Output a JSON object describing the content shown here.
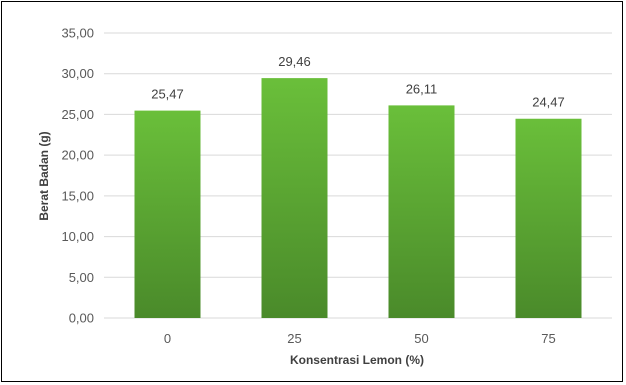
{
  "chart_data": {
    "type": "bar",
    "categories": [
      "0",
      "25",
      "50",
      "75"
    ],
    "values": [
      25.47,
      29.46,
      26.11,
      24.47
    ],
    "data_labels": [
      "25,47",
      "29,46",
      "26,11",
      "24,47"
    ],
    "title": "",
    "xlabel": "Konsentrasi Lemon  (%)",
    "ylabel": "Berat Badan  (g)",
    "ylim": [
      0,
      35
    ],
    "yticks": [
      {
        "value": 0,
        "label": "0,00"
      },
      {
        "value": 5,
        "label": "5,00"
      },
      {
        "value": 10,
        "label": "10,00"
      },
      {
        "value": 15,
        "label": "15,00"
      },
      {
        "value": 20,
        "label": "20,00"
      },
      {
        "value": 25,
        "label": "25,00"
      },
      {
        "value": 30,
        "label": "30,00"
      },
      {
        "value": 35,
        "label": "35,00"
      }
    ],
    "grid": true,
    "legend": "none",
    "colors": {
      "bar_top": "#6abf3a",
      "bar_bottom": "#4a8a2a",
      "grid": "#d9d9d9"
    }
  }
}
